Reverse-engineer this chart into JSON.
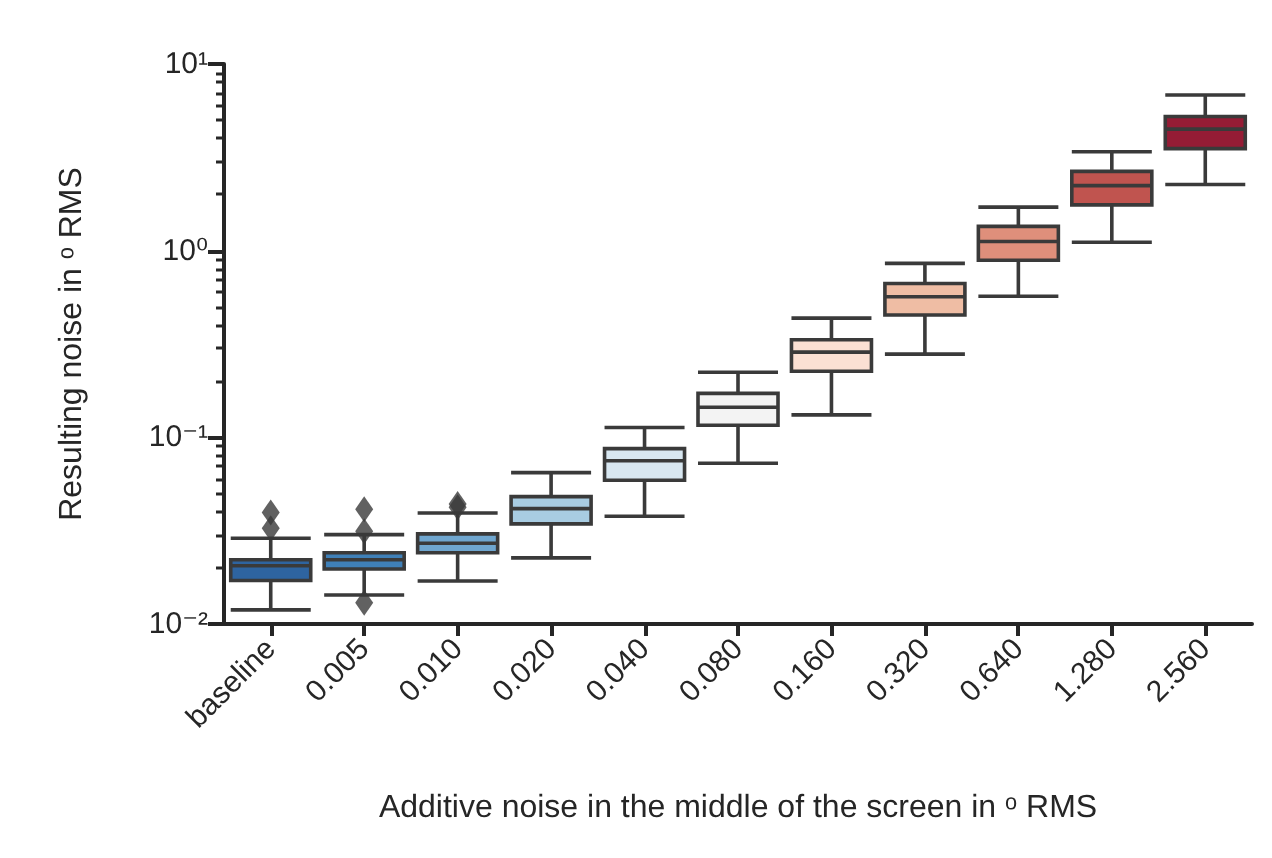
{
  "chart_data": {
    "type": "box",
    "xlabel": "Additive noise in the middle of the screen in ᵒ RMS",
    "ylabel": "Resulting noise in ᵒ RMS",
    "categories": [
      "baseline",
      "0.005",
      "0.010",
      "0.020",
      "0.040",
      "0.080",
      "0.160",
      "0.320",
      "0.640",
      "1.280",
      "2.560"
    ],
    "colors": [
      "#2e64a0",
      "#3f80b8",
      "#6fa6cf",
      "#a8cce2",
      "#d8e7f1",
      "#f3f3f3",
      "#fbe0d3",
      "#efbda4",
      "#df8f7b",
      "#c0544f",
      "#951c35"
    ],
    "boxes": [
      {
        "low": 0.0119,
        "q1": 0.0171,
        "median": 0.0205,
        "q3": 0.0221,
        "high": 0.0288,
        "outliers": [
          0.0326,
          0.0396
        ]
      },
      {
        "low": 0.0143,
        "q1": 0.0197,
        "median": 0.0221,
        "q3": 0.0241,
        "high": 0.0301,
        "outliers": [
          0.0314,
          0.0412,
          0.013
        ]
      },
      {
        "low": 0.017,
        "q1": 0.0241,
        "median": 0.0271,
        "q3": 0.0304,
        "high": 0.0393,
        "outliers": [
          0.0422,
          0.044
        ]
      },
      {
        "low": 0.0226,
        "q1": 0.0344,
        "median": 0.0415,
        "q3": 0.0481,
        "high": 0.0647
      },
      {
        "low": 0.0378,
        "q1": 0.0589,
        "median": 0.0749,
        "q3": 0.087,
        "high": 0.113
      },
      {
        "low": 0.0726,
        "q1": 0.116,
        "median": 0.145,
        "q3": 0.172,
        "high": 0.223
      },
      {
        "low": 0.132,
        "q1": 0.226,
        "median": 0.286,
        "q3": 0.333,
        "high": 0.435
      },
      {
        "low": 0.279,
        "q1": 0.452,
        "median": 0.566,
        "q3": 0.667,
        "high": 0.855
      },
      {
        "low": 0.57,
        "q1": 0.888,
        "median": 1.12,
        "q3": 1.35,
        "high": 1.71
      },
      {
        "low": 1.11,
        "q1": 1.76,
        "median": 2.23,
        "q3": 2.66,
        "high": 3.39
      },
      {
        "low": 2.26,
        "q1": 3.52,
        "median": 4.48,
        "q3": 5.23,
        "high": 6.82
      }
    ],
    "log": "y",
    "ylim": [
      0.01,
      10
    ],
    "yticks": [
      {
        "value": 0.01,
        "label": "10⁻²"
      },
      {
        "value": 0.02,
        "label": null
      },
      {
        "value": 0.03,
        "label": null
      },
      {
        "value": 0.04,
        "label": null
      },
      {
        "value": 0.05,
        "label": null
      },
      {
        "value": 0.06,
        "label": null
      },
      {
        "value": 0.07,
        "label": null
      },
      {
        "value": 0.08,
        "label": null
      },
      {
        "value": 0.09,
        "label": null
      },
      {
        "value": 0.1,
        "label": "10⁻¹"
      },
      {
        "value": 0.2,
        "label": null
      },
      {
        "value": 0.3,
        "label": null
      },
      {
        "value": 0.4,
        "label": null
      },
      {
        "value": 0.5,
        "label": null
      },
      {
        "value": 0.6,
        "label": null
      },
      {
        "value": 0.7,
        "label": null
      },
      {
        "value": 0.8,
        "label": null
      },
      {
        "value": 0.9,
        "label": null
      },
      {
        "value": 1,
        "label": "10⁰"
      },
      {
        "value": 2,
        "label": null
      },
      {
        "value": 3,
        "label": null
      },
      {
        "value": 4,
        "label": null
      },
      {
        "value": 5,
        "label": null
      },
      {
        "value": 6,
        "label": null
      },
      {
        "value": 7,
        "label": null
      },
      {
        "value": 8,
        "label": null
      },
      {
        "value": 9,
        "label": null
      },
      {
        "value": 10,
        "label": "10¹"
      }
    ],
    "marker": "diamond",
    "grid": false
  }
}
